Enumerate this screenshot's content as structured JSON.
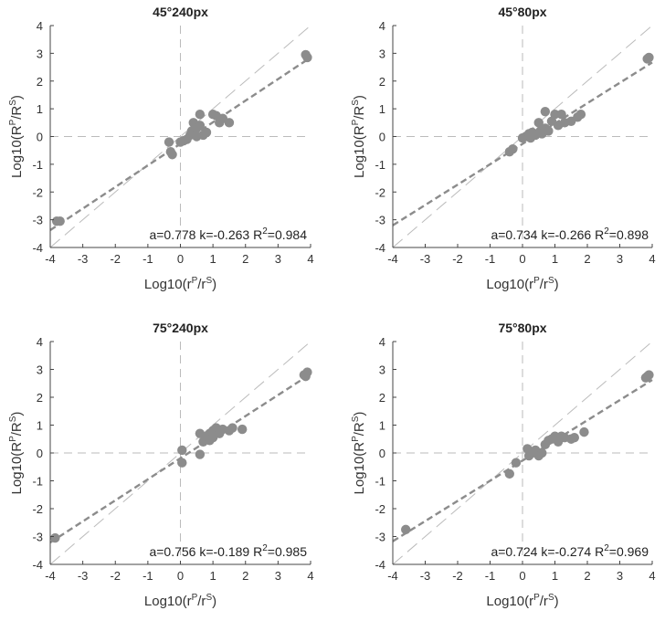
{
  "figure": {
    "x_label": {
      "base": "Log10(r",
      "sup1": "P",
      "mid": "/r",
      "sup2": "S",
      "end": ")"
    },
    "y_label": {
      "base": "Log10(R",
      "sup1": "P",
      "mid": "/R",
      "sup2": "S",
      "end": ")"
    },
    "colors": {
      "points": "#8c8c8c",
      "fit_line": "#8c8c8c",
      "reference_line": "#bbbbbb",
      "axis": "#444444"
    }
  },
  "chart_data": [
    {
      "type": "scatter",
      "title": "45°240px",
      "xlim": [
        -4,
        4
      ],
      "ylim": [
        -4,
        4
      ],
      "xticks": [
        -4,
        -3,
        -2,
        -1,
        0,
        1,
        2,
        3,
        4
      ],
      "yticks": [
        -4,
        -3,
        -2,
        -1,
        0,
        1,
        2,
        3,
        4
      ],
      "fit": {
        "a": 0.778,
        "k": -0.263,
        "r2": 0.984
      },
      "stats": {
        "a": "a=0.778",
        "k": "k=-0.263",
        "r2_label": "R",
        "r2_sup": "2",
        "r2_value": "=0.984"
      },
      "x": [
        -3.8,
        -3.7,
        -0.35,
        -0.3,
        -0.25,
        0.0,
        0.1,
        0.2,
        0.3,
        0.35,
        0.4,
        0.5,
        0.5,
        0.6,
        0.6,
        0.7,
        0.8,
        1.0,
        1.1,
        1.2,
        1.3,
        1.5,
        3.85,
        3.9
      ],
      "y": [
        -3.05,
        -3.05,
        -0.2,
        -0.55,
        -0.65,
        -0.2,
        -0.15,
        -0.1,
        0.05,
        0.2,
        0.5,
        0.3,
        0.0,
        0.4,
        0.8,
        0.05,
        0.15,
        0.8,
        0.75,
        0.5,
        0.65,
        0.5,
        2.95,
        2.85
      ]
    },
    {
      "type": "scatter",
      "title": "45°80px",
      "xlim": [
        -4,
        4
      ],
      "ylim": [
        -4,
        4
      ],
      "xticks": [
        -4,
        -3,
        -2,
        -1,
        0,
        1,
        2,
        3,
        4
      ],
      "yticks": [
        -4,
        -3,
        -2,
        -1,
        0,
        1,
        2,
        3,
        4
      ],
      "fit": {
        "a": 0.734,
        "k": -0.266,
        "r2": 0.898
      },
      "stats": {
        "a": "a=0.734",
        "k": "k=-0.266",
        "r2_label": "R",
        "r2_sup": "2",
        "r2_value": "=0.898"
      },
      "x": [
        -0.4,
        -0.3,
        0.0,
        0.1,
        0.2,
        0.25,
        0.3,
        0.4,
        0.5,
        0.55,
        0.6,
        0.7,
        0.7,
        0.8,
        0.9,
        1.0,
        1.1,
        1.2,
        1.3,
        1.5,
        1.7,
        1.8,
        3.85,
        3.9
      ],
      "y": [
        -0.55,
        -0.45,
        -0.05,
        0.0,
        0.1,
        -0.05,
        0.15,
        0.05,
        0.5,
        0.2,
        0.1,
        0.3,
        0.9,
        0.2,
        0.55,
        0.8,
        0.4,
        0.8,
        0.5,
        0.55,
        0.7,
        0.8,
        2.8,
        2.85
      ]
    },
    {
      "type": "scatter",
      "title": "75°240px",
      "xlim": [
        -4,
        4
      ],
      "ylim": [
        -4,
        4
      ],
      "xticks": [
        -4,
        -3,
        -2,
        -1,
        0,
        1,
        2,
        3,
        4
      ],
      "yticks": [
        -4,
        -3,
        -2,
        -1,
        0,
        1,
        2,
        3,
        4
      ],
      "fit": {
        "a": 0.756,
        "k": -0.189,
        "r2": 0.985
      },
      "stats": {
        "a": "a=0.756",
        "k": "k=-0.189",
        "r2_label": "R",
        "r2_sup": "2",
        "r2_value": "=0.985"
      },
      "x": [
        -3.85,
        0.05,
        0.05,
        0.6,
        0.6,
        0.7,
        0.8,
        0.9,
        0.9,
        1.0,
        1.0,
        1.1,
        1.2,
        1.3,
        1.5,
        1.6,
        1.9,
        3.8,
        3.85,
        3.9
      ],
      "y": [
        -3.05,
        0.1,
        -0.35,
        0.7,
        -0.05,
        0.4,
        0.6,
        0.45,
        0.7,
        0.8,
        0.55,
        0.9,
        0.7,
        0.85,
        0.8,
        0.9,
        0.85,
        2.8,
        2.75,
        2.9
      ]
    },
    {
      "type": "scatter",
      "title": "75°80px",
      "xlim": [
        -4,
        4
      ],
      "ylim": [
        -4,
        4
      ],
      "xticks": [
        -4,
        -3,
        -2,
        -1,
        0,
        1,
        2,
        3,
        4
      ],
      "yticks": [
        -4,
        -3,
        -2,
        -1,
        0,
        1,
        2,
        3,
        4
      ],
      "fit": {
        "a": 0.724,
        "k": -0.274,
        "r2": 0.969
      },
      "stats": {
        "a": "a=0.724",
        "k": "k=-0.274",
        "r2_label": "R",
        "r2_sup": "2",
        "r2_value": "=0.969"
      },
      "x": [
        -3.6,
        -0.4,
        -0.2,
        0.15,
        0.2,
        0.25,
        0.3,
        0.4,
        0.5,
        0.6,
        0.7,
        0.8,
        0.9,
        1.0,
        1.1,
        1.2,
        1.3,
        1.5,
        1.6,
        1.9,
        3.8,
        3.85,
        3.9
      ],
      "y": [
        -2.75,
        -0.75,
        -0.35,
        0.15,
        -0.1,
        0.05,
        0.0,
        0.1,
        -0.1,
        0.0,
        0.3,
        0.45,
        0.5,
        0.6,
        0.4,
        0.6,
        0.55,
        0.5,
        0.55,
        0.75,
        2.7,
        2.75,
        2.8
      ]
    }
  ]
}
